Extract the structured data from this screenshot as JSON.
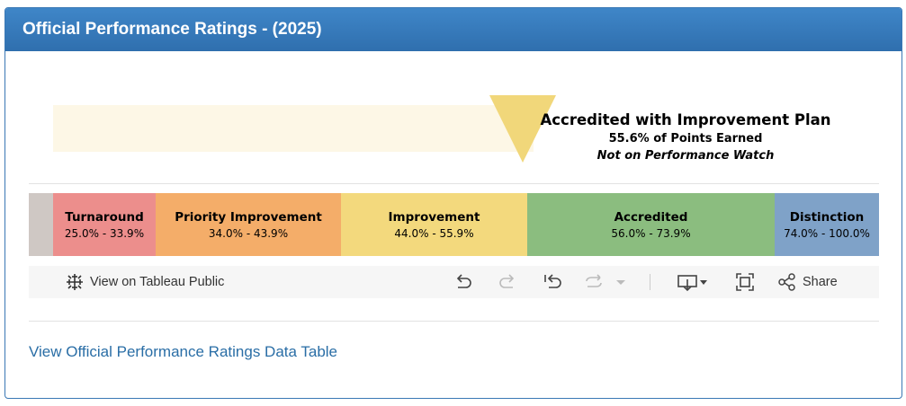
{
  "header": {
    "title": "Official Performance Ratings - (2025)"
  },
  "status": {
    "rating": "Accredited with Improvement Plan",
    "points": "55.6% of Points Earned",
    "watch": "Not on Performance Watch"
  },
  "bands": [
    {
      "name": "",
      "range": "",
      "color": "#cfc8c4"
    },
    {
      "name": "Turnaround",
      "range": "25.0% - 33.9%",
      "color": "#ec8e8c"
    },
    {
      "name": "Priority Improvement",
      "range": "34.0% - 43.9%",
      "color": "#f4ad69"
    },
    {
      "name": "Improvement",
      "range": "44.0% - 55.9%",
      "color": "#f3d97d"
    },
    {
      "name": "Accredited",
      "range": "56.0% - 73.9%",
      "color": "#8bbd7f"
    },
    {
      "name": "Distinction",
      "range": "74.0% - 100.0%",
      "color": "#7fa2c8"
    }
  ],
  "toolbar": {
    "view_label": "View on Tableau Public",
    "share_label": "Share",
    "icons": [
      "tableau-icon",
      "undo-icon",
      "redo-icon",
      "revert-icon",
      "refresh-icon",
      "dropdown-icon",
      "download-icon",
      "fullscreen-icon",
      "share-icon"
    ]
  },
  "link": {
    "label": "View Official Performance Ratings Data Table"
  }
}
